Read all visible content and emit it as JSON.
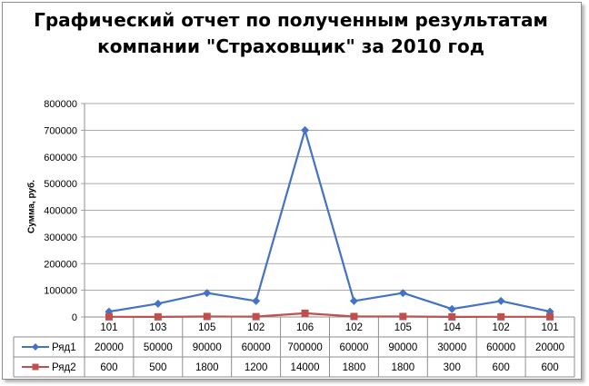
{
  "chart_data": {
    "type": "line",
    "title_line1": "Графический отчет по полученным результатам",
    "title_line2": "компании \"Страховщик\" за 2010 год",
    "ylabel": "Сумма, руб.",
    "xlabel": "",
    "ylim": [
      0,
      800000
    ],
    "yticks": [
      "0",
      "100000",
      "200000",
      "300000",
      "400000",
      "500000",
      "600000",
      "700000",
      "800000"
    ],
    "grid": true,
    "legend": "data-table",
    "categories": [
      "101",
      "103",
      "105",
      "102",
      "106",
      "102",
      "105",
      "104",
      "102",
      "101"
    ],
    "series": [
      {
        "name": "Ряд1",
        "color": "#4472c4",
        "marker": "diamond",
        "values": [
          20000,
          50000,
          90000,
          60000,
          700000,
          60000,
          90000,
          30000,
          60000,
          20000
        ],
        "labels": [
          "20000",
          "50000",
          "90000",
          "60000",
          "700000",
          "60000",
          "90000",
          "30000",
          "60000",
          "20000"
        ]
      },
      {
        "name": "Ряд2",
        "color": "#c0504d",
        "marker": "square",
        "values": [
          600,
          500,
          1800,
          1200,
          14000,
          1800,
          1800,
          300,
          600,
          600
        ],
        "labels": [
          "600",
          "500",
          "1800",
          "1200",
          "14000",
          "1800",
          "1800",
          "300",
          "600",
          "600"
        ]
      }
    ]
  }
}
